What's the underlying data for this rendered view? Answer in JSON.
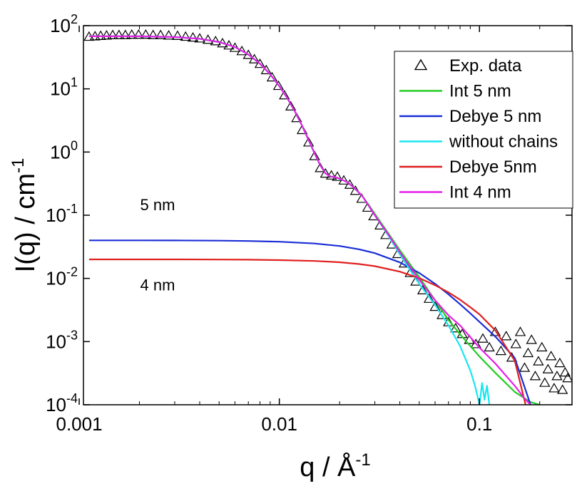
{
  "chart_data": {
    "type": "line",
    "xlabel": "q / Å",
    "xlabel_exp": "-1",
    "ylabel": "I(q) / cm",
    "ylabel_exp": "-1",
    "x_scale": "log",
    "y_scale": "log",
    "xlim": [
      0.00105,
      0.29
    ],
    "ylim": [
      0.0001,
      100
    ],
    "x_ticks": [
      {
        "value": 0.001,
        "label": "0.001"
      },
      {
        "value": 0.01,
        "label": "0.01"
      },
      {
        "value": 0.1,
        "label": "0.1"
      }
    ],
    "y_ticks": [
      {
        "value": 100,
        "base": "10",
        "exp": "2"
      },
      {
        "value": 10,
        "base": "10",
        "exp": "1"
      },
      {
        "value": 1,
        "base": "10",
        "exp": "0"
      },
      {
        "value": 0.1,
        "base": "10",
        "exp": "-1"
      },
      {
        "value": 0.01,
        "base": "10",
        "exp": "-2"
      },
      {
        "value": 0.001,
        "base": "10",
        "exp": "-3"
      },
      {
        "value": 0.0001,
        "base": "10",
        "exp": "-4"
      }
    ],
    "legend_position": "top-right",
    "series": [
      {
        "name": "Exp. data",
        "kind": "scatter",
        "marker": "open-triangle",
        "color": "#000000",
        "x": [
          0.00112,
          0.0012,
          0.00128,
          0.00137,
          0.00147,
          0.00158,
          0.0017,
          0.00183,
          0.00198,
          0.00215,
          0.00234,
          0.00255,
          0.0028,
          0.0031,
          0.0034,
          0.0037,
          0.004,
          0.0044,
          0.0048,
          0.0052,
          0.0056,
          0.006,
          0.0065,
          0.007,
          0.0075,
          0.008,
          0.0086,
          0.0092,
          0.0099,
          0.0106,
          0.0114,
          0.0122,
          0.013,
          0.014,
          0.015,
          0.016,
          0.017,
          0.0182,
          0.0195,
          0.021,
          0.0225,
          0.024,
          0.0258,
          0.0276,
          0.0296,
          0.0318,
          0.034,
          0.0365,
          0.039,
          0.042,
          0.045,
          0.048,
          0.052,
          0.056,
          0.06,
          0.065,
          0.07,
          0.076,
          0.082,
          0.089,
          0.096,
          0.104,
          0.112,
          0.12,
          0.128,
          0.136,
          0.145,
          0.152,
          0.16,
          0.168,
          0.175,
          0.182,
          0.19,
          0.197,
          0.205,
          0.212,
          0.22,
          0.228,
          0.236,
          0.244,
          0.252,
          0.26,
          0.268,
          0.276
        ],
        "y": [
          66,
          67,
          68,
          69,
          70,
          70,
          70,
          71,
          71,
          71,
          70,
          70,
          69,
          68,
          66,
          64,
          62,
          59,
          56,
          52,
          48,
          44,
          39,
          34,
          29,
          24.5,
          19.5,
          15,
          11,
          7.8,
          5.2,
          3.4,
          2.2,
          1.4,
          0.85,
          0.55,
          0.45,
          0.42,
          0.4,
          0.35,
          0.3,
          0.24,
          0.18,
          0.13,
          0.095,
          0.068,
          0.048,
          0.034,
          0.024,
          0.017,
          0.012,
          0.0088,
          0.0064,
          0.0047,
          0.0035,
          0.0026,
          0.002,
          0.0016,
          0.0013,
          0.00105,
          0.0009,
          0.0011,
          0.0008,
          0.0014,
          0.0007,
          0.0012,
          0.00055,
          0.0009,
          0.0014,
          0.00038,
          0.00065,
          0.00105,
          0.00028,
          0.00048,
          0.0008,
          0.00022,
          0.00036,
          0.00058,
          0.00018,
          0.00028,
          0.00045,
          0.00017,
          0.00032,
          0.00026
        ]
      },
      {
        "name": "Int 5 nm",
        "kind": "line",
        "color": "#22cc22",
        "x": [
          0.00112,
          0.002,
          0.003,
          0.004,
          0.005,
          0.006,
          0.007,
          0.008,
          0.009,
          0.01,
          0.011,
          0.012,
          0.013,
          0.014,
          0.015,
          0.016,
          0.017,
          0.018,
          0.019,
          0.02,
          0.022,
          0.024,
          0.026,
          0.028,
          0.03,
          0.035,
          0.04,
          0.05,
          0.06,
          0.07,
          0.08,
          0.1,
          0.12,
          0.15,
          0.18,
          0.2
        ],
        "y": [
          68,
          68,
          66,
          62,
          55,
          46,
          35,
          25,
          17,
          11,
          7,
          4.3,
          2.6,
          1.55,
          0.95,
          0.62,
          0.46,
          0.41,
          0.4,
          0.38,
          0.33,
          0.26,
          0.2,
          0.145,
          0.105,
          0.052,
          0.028,
          0.0105,
          0.0045,
          0.0022,
          0.0013,
          0.00058,
          0.00032,
          0.00016,
          0.00011,
          0.0001
        ]
      },
      {
        "name": "Debye 5 nm",
        "kind": "line",
        "color": "#1a2ed6",
        "x": [
          0.00112,
          0.002,
          0.003,
          0.005,
          0.007,
          0.01,
          0.015,
          0.02,
          0.025,
          0.03,
          0.04,
          0.05,
          0.06,
          0.07,
          0.08,
          0.09,
          0.1,
          0.12,
          0.15,
          0.18
        ],
        "y": [
          0.04,
          0.04,
          0.0399,
          0.0396,
          0.0391,
          0.0381,
          0.0357,
          0.0326,
          0.0289,
          0.0251,
          0.0179,
          0.0122,
          0.0082,
          0.0056,
          0.0039,
          0.0028,
          0.00205,
          0.0012,
          0.00055,
          0.0001
        ]
      },
      {
        "name": "without chains",
        "kind": "line",
        "color": "#19e6f0",
        "x": [
          0.00112,
          0.002,
          0.003,
          0.004,
          0.005,
          0.006,
          0.007,
          0.008,
          0.009,
          0.01,
          0.011,
          0.012,
          0.013,
          0.014,
          0.015,
          0.016,
          0.017,
          0.018,
          0.019,
          0.02,
          0.022,
          0.024,
          0.026,
          0.028,
          0.03,
          0.035,
          0.04,
          0.05,
          0.06,
          0.07,
          0.08,
          0.09,
          0.095,
          0.1,
          0.103,
          0.106,
          0.109,
          0.112
        ],
        "y": [
          68,
          68,
          66,
          62,
          55,
          46,
          35,
          25,
          17,
          11,
          7,
          4.3,
          2.6,
          1.55,
          0.95,
          0.62,
          0.46,
          0.41,
          0.4,
          0.38,
          0.33,
          0.26,
          0.2,
          0.14,
          0.1,
          0.048,
          0.024,
          0.0082,
          0.0038,
          0.0018,
          0.00085,
          0.00035,
          0.0002,
          0.0001,
          0.00022,
          0.00012,
          0.0002,
          0.0001
        ]
      },
      {
        "name": "Debye 5nm",
        "kind": "line",
        "color": "#e01f1f",
        "x": [
          0.00112,
          0.002,
          0.003,
          0.005,
          0.007,
          0.01,
          0.015,
          0.02,
          0.025,
          0.03,
          0.04,
          0.05,
          0.06,
          0.07,
          0.08,
          0.09,
          0.1,
          0.12,
          0.15,
          0.17
        ],
        "y": [
          0.02,
          0.02,
          0.02,
          0.0199,
          0.0198,
          0.0195,
          0.0189,
          0.018,
          0.0169,
          0.0156,
          0.0128,
          0.0101,
          0.0078,
          0.006,
          0.0046,
          0.0035,
          0.0027,
          0.0015,
          0.0005,
          0.0001
        ]
      },
      {
        "name": "Int 4 nm",
        "kind": "line",
        "color": "#e61ee6",
        "x": [
          0.00112,
          0.002,
          0.003,
          0.004,
          0.005,
          0.006,
          0.007,
          0.008,
          0.009,
          0.01,
          0.011,
          0.012,
          0.013,
          0.014,
          0.015,
          0.016,
          0.017,
          0.018,
          0.019,
          0.02,
          0.022,
          0.024,
          0.026,
          0.028,
          0.03,
          0.035,
          0.04,
          0.05,
          0.06,
          0.07,
          0.08,
          0.1,
          0.12,
          0.15,
          0.17,
          0.18
        ],
        "y": [
          68,
          68,
          66,
          62,
          55,
          46,
          35,
          25,
          17,
          11,
          7,
          4.3,
          2.6,
          1.55,
          0.95,
          0.62,
          0.46,
          0.41,
          0.4,
          0.38,
          0.33,
          0.26,
          0.2,
          0.14,
          0.1,
          0.05,
          0.026,
          0.0095,
          0.0045,
          0.0026,
          0.0018,
          0.0008,
          0.00045,
          0.0002,
          0.00012,
          0.0001
        ]
      }
    ],
    "annotations": [
      {
        "text": "5 nm",
        "x": 0.0028,
        "y": 0.12
      },
      {
        "text": "4 nm",
        "x": 0.0028,
        "y": 0.0065
      }
    ]
  }
}
